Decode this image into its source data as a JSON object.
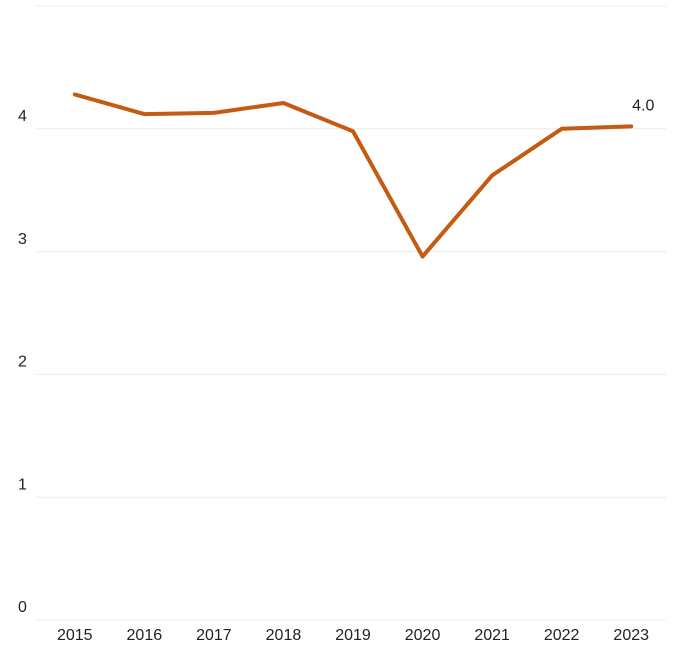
{
  "chart_data": {
    "type": "line",
    "categories": [
      "2015",
      "2016",
      "2017",
      "2018",
      "2019",
      "2020",
      "2021",
      "2022",
      "2023"
    ],
    "series": [
      {
        "color": "#c55a11",
        "values": [
          4.28,
          4.12,
          4.13,
          4.21,
          3.98,
          2.96,
          3.62,
          4.0,
          4.02
        ],
        "value_labels": [
          null,
          null,
          null,
          null,
          null,
          null,
          null,
          null,
          "4.0"
        ]
      }
    ],
    "ylim": [
      0,
      5
    ],
    "yticks": [
      0,
      1,
      2,
      3,
      4,
      5
    ],
    "grid": true
  }
}
